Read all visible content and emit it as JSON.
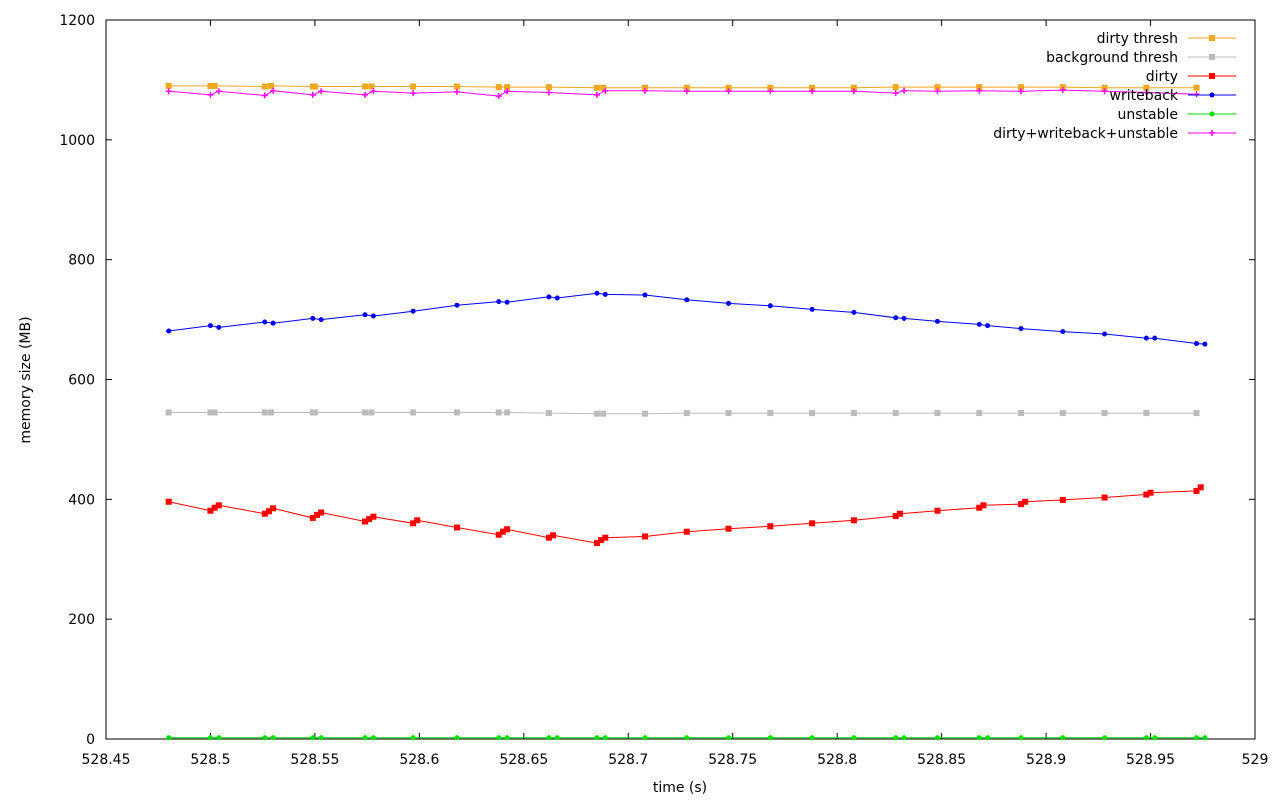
{
  "chart_data": {
    "type": "line",
    "title": "",
    "xlabel": "time (s)",
    "ylabel": "memory size (MB)",
    "xlim": [
      528.45,
      529
    ],
    "ylim": [
      0,
      1200
    ],
    "x_ticks": [
      "528.45",
      "528.5",
      "528.55",
      "528.6",
      "528.65",
      "528.7",
      "528.75",
      "528.8",
      "528.85",
      "528.9",
      "528.95",
      "529"
    ],
    "y_ticks": [
      "0",
      "200",
      "400",
      "600",
      "800",
      "1000",
      "1200"
    ],
    "grid": false,
    "legend_position": "top-right",
    "series": [
      {
        "name": "dirty thresh",
        "color": "#f0a820",
        "marker": "square",
        "points": [
          [
            528.48,
            1090
          ],
          [
            528.5,
            1090
          ],
          [
            528.502,
            1090
          ],
          [
            528.526,
            1089
          ],
          [
            528.529,
            1090
          ],
          [
            528.549,
            1089
          ],
          [
            528.55,
            1089
          ],
          [
            528.574,
            1089
          ],
          [
            528.577,
            1089
          ],
          [
            528.597,
            1089
          ],
          [
            528.618,
            1089
          ],
          [
            528.638,
            1088
          ],
          [
            528.642,
            1088
          ],
          [
            528.662,
            1088
          ],
          [
            528.685,
            1087
          ],
          [
            528.688,
            1087
          ],
          [
            528.708,
            1087
          ],
          [
            528.728,
            1087
          ],
          [
            528.748,
            1087
          ],
          [
            528.768,
            1087
          ],
          [
            528.788,
            1087
          ],
          [
            528.808,
            1087
          ],
          [
            528.828,
            1088
          ],
          [
            528.848,
            1088
          ],
          [
            528.868,
            1088
          ],
          [
            528.888,
            1088
          ],
          [
            528.908,
            1088
          ],
          [
            528.928,
            1087
          ],
          [
            528.948,
            1087
          ],
          [
            528.972,
            1087
          ]
        ]
      },
      {
        "name": "background thresh",
        "color": "#bbbbbb",
        "marker": "square",
        "points": [
          [
            528.48,
            545
          ],
          [
            528.5,
            545
          ],
          [
            528.502,
            545
          ],
          [
            528.526,
            545
          ],
          [
            528.529,
            545
          ],
          [
            528.549,
            545
          ],
          [
            528.55,
            545
          ],
          [
            528.574,
            545
          ],
          [
            528.577,
            545
          ],
          [
            528.597,
            545
          ],
          [
            528.618,
            545
          ],
          [
            528.638,
            545
          ],
          [
            528.642,
            545
          ],
          [
            528.662,
            544
          ],
          [
            528.685,
            543
          ],
          [
            528.688,
            543
          ],
          [
            528.708,
            543
          ],
          [
            528.728,
            544
          ],
          [
            528.748,
            544
          ],
          [
            528.768,
            544
          ],
          [
            528.788,
            544
          ],
          [
            528.808,
            544
          ],
          [
            528.828,
            544
          ],
          [
            528.848,
            544
          ],
          [
            528.868,
            544
          ],
          [
            528.888,
            544
          ],
          [
            528.908,
            544
          ],
          [
            528.928,
            544
          ],
          [
            528.948,
            544
          ],
          [
            528.972,
            544
          ]
        ]
      },
      {
        "name": "dirty",
        "color": "#ff0000",
        "marker": "square",
        "points": [
          [
            528.48,
            396
          ],
          [
            528.5,
            381
          ],
          [
            528.502,
            386
          ],
          [
            528.504,
            390
          ],
          [
            528.526,
            376
          ],
          [
            528.528,
            380
          ],
          [
            528.53,
            385
          ],
          [
            528.549,
            369
          ],
          [
            528.551,
            374
          ],
          [
            528.553,
            378
          ],
          [
            528.574,
            363
          ],
          [
            528.576,
            367
          ],
          [
            528.578,
            371
          ],
          [
            528.597,
            360
          ],
          [
            528.599,
            365
          ],
          [
            528.618,
            353
          ],
          [
            528.638,
            341
          ],
          [
            528.64,
            346
          ],
          [
            528.642,
            350
          ],
          [
            528.662,
            336
          ],
          [
            528.664,
            340
          ],
          [
            528.685,
            327
          ],
          [
            528.687,
            332
          ],
          [
            528.689,
            336
          ],
          [
            528.708,
            338
          ],
          [
            528.728,
            346
          ],
          [
            528.748,
            351
          ],
          [
            528.768,
            355
          ],
          [
            528.788,
            360
          ],
          [
            528.808,
            365
          ],
          [
            528.828,
            372
          ],
          [
            528.83,
            376
          ],
          [
            528.848,
            381
          ],
          [
            528.868,
            386
          ],
          [
            528.87,
            390
          ],
          [
            528.888,
            392
          ],
          [
            528.89,
            396
          ],
          [
            528.908,
            399
          ],
          [
            528.928,
            403
          ],
          [
            528.948,
            408
          ],
          [
            528.95,
            411
          ],
          [
            528.972,
            414
          ],
          [
            528.974,
            420
          ]
        ]
      },
      {
        "name": "writeback",
        "color": "#0000ff",
        "marker": "circle",
        "points": [
          [
            528.48,
            681
          ],
          [
            528.5,
            690
          ],
          [
            528.504,
            687
          ],
          [
            528.526,
            696
          ],
          [
            528.53,
            694
          ],
          [
            528.549,
            702
          ],
          [
            528.553,
            700
          ],
          [
            528.574,
            708
          ],
          [
            528.578,
            706
          ],
          [
            528.597,
            714
          ],
          [
            528.618,
            724
          ],
          [
            528.638,
            730
          ],
          [
            528.642,
            729
          ],
          [
            528.662,
            738
          ],
          [
            528.666,
            736
          ],
          [
            528.685,
            744
          ],
          [
            528.689,
            742
          ],
          [
            528.708,
            741
          ],
          [
            528.728,
            733
          ],
          [
            528.748,
            727
          ],
          [
            528.768,
            723
          ],
          [
            528.788,
            717
          ],
          [
            528.808,
            712
          ],
          [
            528.828,
            703
          ],
          [
            528.832,
            702
          ],
          [
            528.848,
            697
          ],
          [
            528.868,
            692
          ],
          [
            528.872,
            690
          ],
          [
            528.888,
            685
          ],
          [
            528.908,
            680
          ],
          [
            528.928,
            676
          ],
          [
            528.948,
            669
          ],
          [
            528.952,
            669
          ],
          [
            528.972,
            660
          ],
          [
            528.976,
            659
          ]
        ]
      },
      {
        "name": "unstable",
        "color": "#00dd00",
        "marker": "circle",
        "points": [
          [
            528.48,
            2
          ],
          [
            528.5,
            2
          ],
          [
            528.504,
            2
          ],
          [
            528.526,
            2
          ],
          [
            528.53,
            2
          ],
          [
            528.549,
            2
          ],
          [
            528.553,
            2
          ],
          [
            528.574,
            2
          ],
          [
            528.578,
            2
          ],
          [
            528.597,
            2
          ],
          [
            528.618,
            2
          ],
          [
            528.638,
            2
          ],
          [
            528.642,
            2
          ],
          [
            528.662,
            2
          ],
          [
            528.666,
            2
          ],
          [
            528.685,
            2
          ],
          [
            528.689,
            2
          ],
          [
            528.708,
            2
          ],
          [
            528.728,
            2
          ],
          [
            528.748,
            2
          ],
          [
            528.768,
            2
          ],
          [
            528.788,
            2
          ],
          [
            528.808,
            2
          ],
          [
            528.828,
            2
          ],
          [
            528.832,
            2
          ],
          [
            528.848,
            2
          ],
          [
            528.868,
            2
          ],
          [
            528.872,
            2
          ],
          [
            528.888,
            2
          ],
          [
            528.908,
            2
          ],
          [
            528.928,
            2
          ],
          [
            528.948,
            2
          ],
          [
            528.952,
            2
          ],
          [
            528.972,
            2
          ],
          [
            528.976,
            2
          ]
        ]
      },
      {
        "name": "dirty+writeback+unstable",
        "color": "#ff00ff",
        "marker": "plus",
        "points": [
          [
            528.48,
            1081
          ],
          [
            528.5,
            1075
          ],
          [
            528.504,
            1081
          ],
          [
            528.526,
            1074
          ],
          [
            528.53,
            1082
          ],
          [
            528.549,
            1075
          ],
          [
            528.553,
            1081
          ],
          [
            528.574,
            1075
          ],
          [
            528.578,
            1081
          ],
          [
            528.597,
            1078
          ],
          [
            528.618,
            1080
          ],
          [
            528.638,
            1073
          ],
          [
            528.642,
            1081
          ],
          [
            528.662,
            1079
          ],
          [
            528.685,
            1075
          ],
          [
            528.689,
            1082
          ],
          [
            528.708,
            1082
          ],
          [
            528.728,
            1081
          ],
          [
            528.748,
            1081
          ],
          [
            528.768,
            1081
          ],
          [
            528.788,
            1081
          ],
          [
            528.808,
            1081
          ],
          [
            528.828,
            1078
          ],
          [
            528.832,
            1082
          ],
          [
            528.848,
            1081
          ],
          [
            528.868,
            1082
          ],
          [
            528.888,
            1081
          ],
          [
            528.908,
            1083
          ],
          [
            528.928,
            1081
          ],
          [
            528.948,
            1079
          ],
          [
            528.972,
            1076
          ]
        ]
      }
    ]
  }
}
